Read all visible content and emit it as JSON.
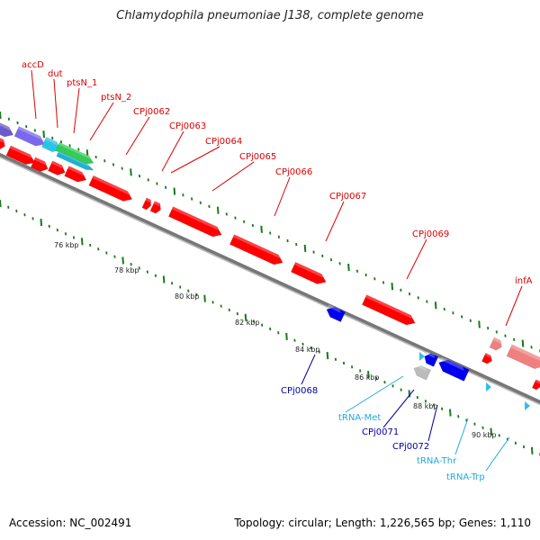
{
  "title": "Chlamydophila pneumoniae J138, complete genome",
  "footer": {
    "accession_label": "Accession: NC_002491",
    "summary_label": "Topology: circular; Length: 1,226,565 bp; Genes: 1,110"
  },
  "colors": {
    "forward": "#ff0000",
    "forward_light": "#f08080",
    "reverse": "#0000ee",
    "trna": "#33bbee",
    "pseudo": "#bbbbbb",
    "backbone": "#888888",
    "ticks": "#1a7a1a",
    "label_forward": "#dd0000",
    "label_reverse": "#0000aa",
    "label_trna": "#22aadd"
  },
  "scale_labels": [
    "76 kbp",
    "78 kbp",
    "80 kbp",
    "82 kbp",
    "84 kbp",
    "86 kbp",
    "88 kbp",
    "90 kbp"
  ],
  "gene_labels_forward": [
    "accD",
    "dut",
    "ptsN_1",
    "ptsN_2",
    "CPj0062",
    "CPj0063",
    "CPj0064",
    "CPj0065",
    "CPj0066",
    "CPj0067",
    "CPj0069",
    "infA"
  ],
  "gene_labels_reverse": [
    "CPj0068",
    "CPj0071",
    "CPj0072"
  ],
  "gene_labels_trna": [
    "tRNA-Met",
    "tRNA-Thr",
    "tRNA-Trp"
  ]
}
